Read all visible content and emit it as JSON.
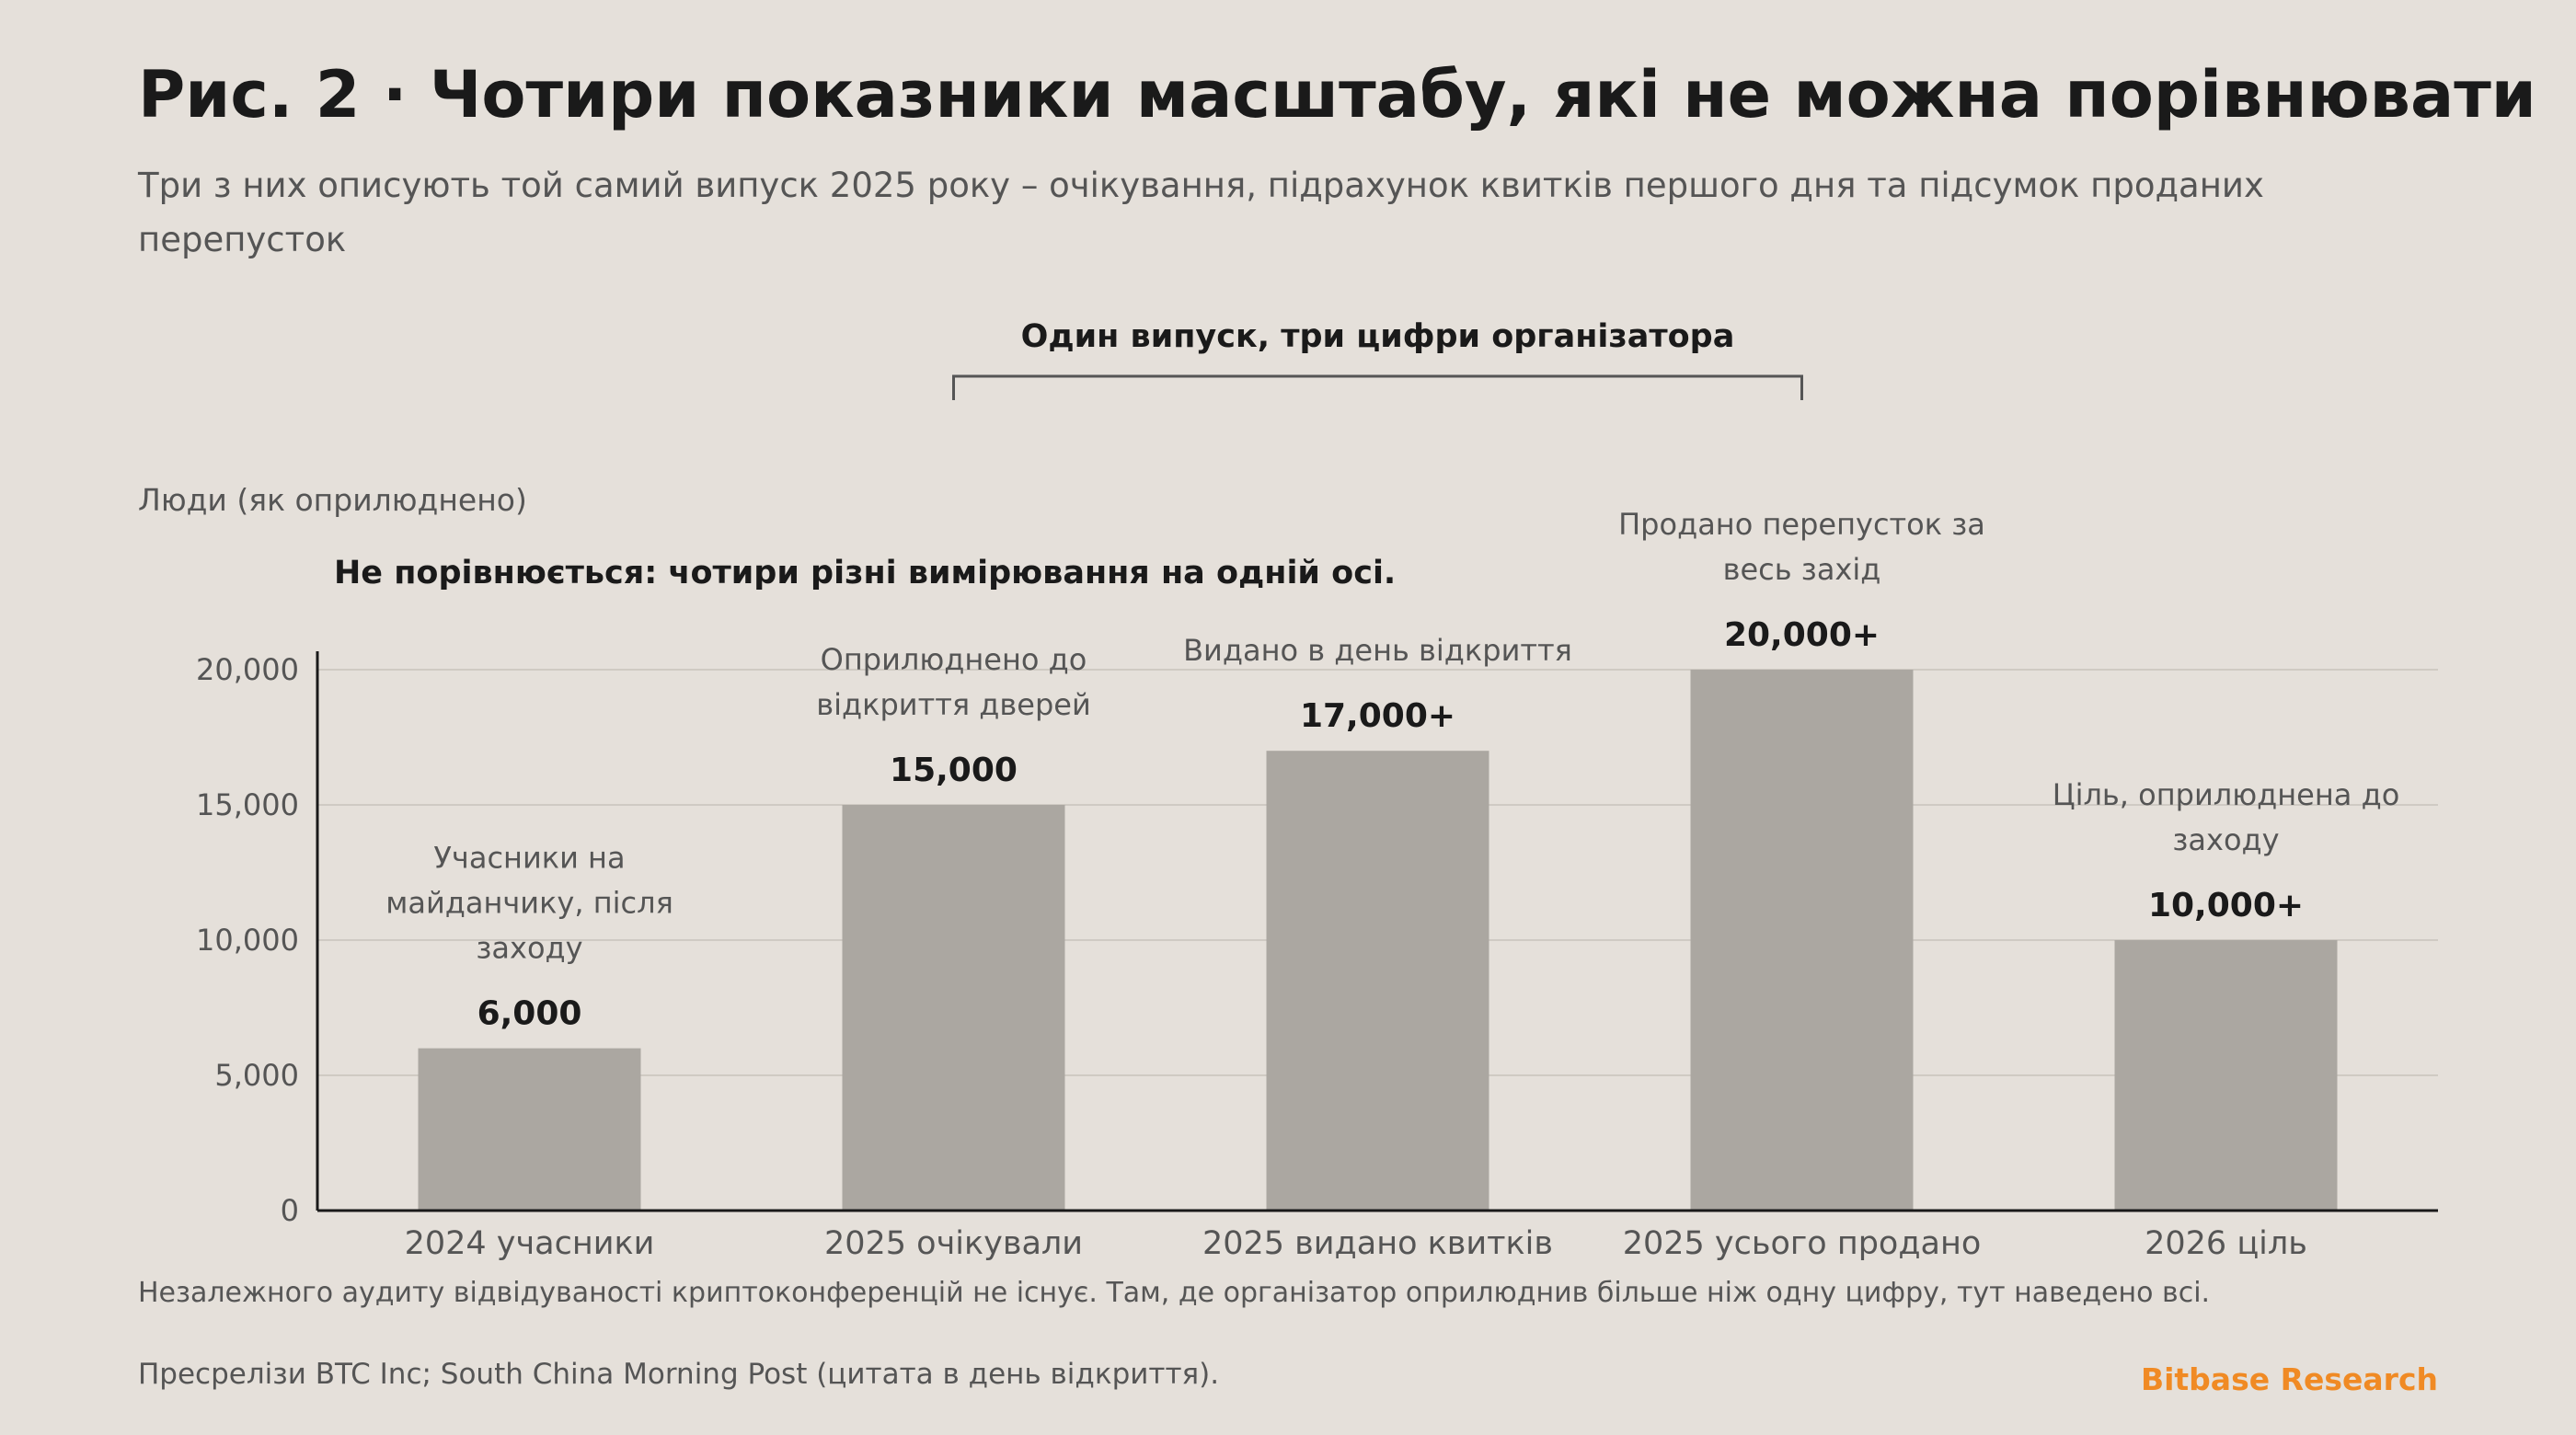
{
  "header": {
    "title": "Рис. 2 · Чотири показники масштабу, які не можна порівнювати",
    "subtitle": "Три з них описують той самий випуск 2025 року – очікування, підрахунок квитків першого дня та підсумок проданих перепусток"
  },
  "footer": {
    "note": "Незалежного аудиту відвідуваності криптоконференцій не існує. Там, де організатор оприлюднив більше ніж одну цифру, тут наведено всі.",
    "source": "Пресрелізи BTC Inc; South China Morning Post (цитата в день відкриття).",
    "brand": "Bitbase Research"
  },
  "colors": {
    "background": "#e5e0da",
    "bar": "#aba7a1",
    "text": "#1a1a1a",
    "muted": "#555555",
    "brand": "#f08a24"
  },
  "chart_data": {
    "type": "bar",
    "ylabel": "Люди (як оприлюднено)",
    "ylim": [
      0,
      20000
    ],
    "yticks": [
      "0",
      "5,000",
      "10,000",
      "15,000",
      "20,000"
    ],
    "ytick_values": [
      0,
      5000,
      10000,
      15000,
      20000
    ],
    "grid": true,
    "categories": [
      "2024 учасники",
      "2025 очікували",
      "2025 видано квитків",
      "2025 усього продано",
      "2026 ціль"
    ],
    "values": [
      6000,
      15000,
      17000,
      20000,
      10000
    ],
    "value_labels": [
      "6,000",
      "15,000",
      "17,000+",
      "20,000+",
      "10,000+"
    ],
    "bar_annotations": [
      [
        "Учасники на",
        "майданчику, після",
        "заходу"
      ],
      [
        "Оприлюднено до",
        "відкриття дверей"
      ],
      [
        "Видано в день відкриття"
      ],
      [
        "Продано перепусток за",
        "весь захід"
      ],
      [
        "Ціль, оприлюднена до",
        "заходу"
      ]
    ],
    "bracket_label": "Один випуск, три цифри організатора",
    "bracket_range": [
      "2025 очікували",
      "2025 усього продано"
    ],
    "note": "Не порівнюється: чотири різні вимірювання на одній осі."
  }
}
